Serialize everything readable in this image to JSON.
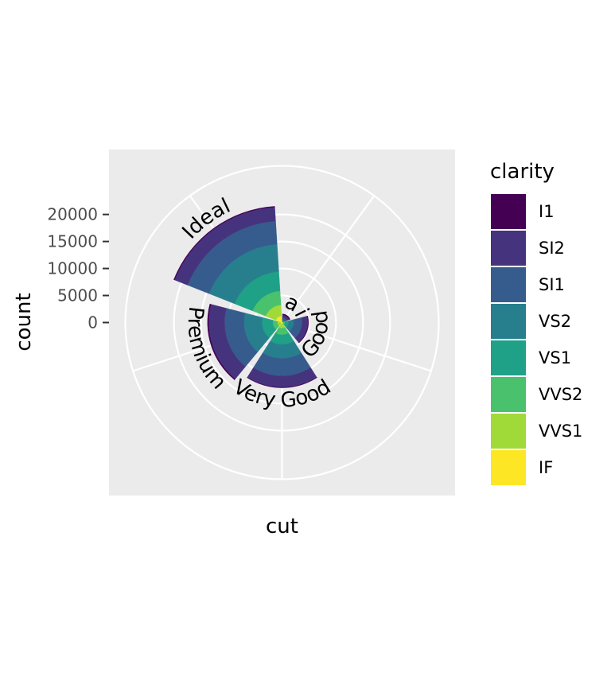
{
  "chart_data": {
    "type": "bar",
    "coord": "polar",
    "stacked": true,
    "xlabel": "cut",
    "ylabel": "count",
    "categories": [
      "Fair",
      "Good",
      "Very Good",
      "Premium",
      "Ideal"
    ],
    "series": [
      {
        "name": "I1",
        "color": "#440154",
        "values": [
          210,
          96,
          84,
          205,
          146
        ]
      },
      {
        "name": "SI2",
        "color": "#46337E",
        "values": [
          466,
          1081,
          2100,
          2949,
          2598
        ]
      },
      {
        "name": "SI1",
        "color": "#365C8D",
        "values": [
          408,
          1560,
          3240,
          3575,
          4282
        ]
      },
      {
        "name": "VS2",
        "color": "#277F8E",
        "values": [
          261,
          978,
          2591,
          3357,
          5071
        ]
      },
      {
        "name": "VS1",
        "color": "#1FA187",
        "values": [
          170,
          648,
          1775,
          1989,
          3589
        ]
      },
      {
        "name": "VVS2",
        "color": "#4AC16D",
        "values": [
          69,
          286,
          1235,
          870,
          2606
        ]
      },
      {
        "name": "VVS1",
        "color": "#A0DA39",
        "values": [
          17,
          186,
          789,
          616,
          2047
        ]
      },
      {
        "name": "IF",
        "color": "#FDE725",
        "values": [
          9,
          71,
          268,
          230,
          1212
        ]
      }
    ],
    "radial_ticks": [
      "0",
      "5000",
      "10000",
      "15000",
      "20000"
    ],
    "radial_tick_values": [
      0,
      5000,
      10000,
      15000,
      20000
    ],
    "ylim": [
      0,
      29000
    ],
    "legend": {
      "title": "clarity",
      "position": "right"
    },
    "grid": true,
    "panel_background": "#EBEBEB"
  }
}
